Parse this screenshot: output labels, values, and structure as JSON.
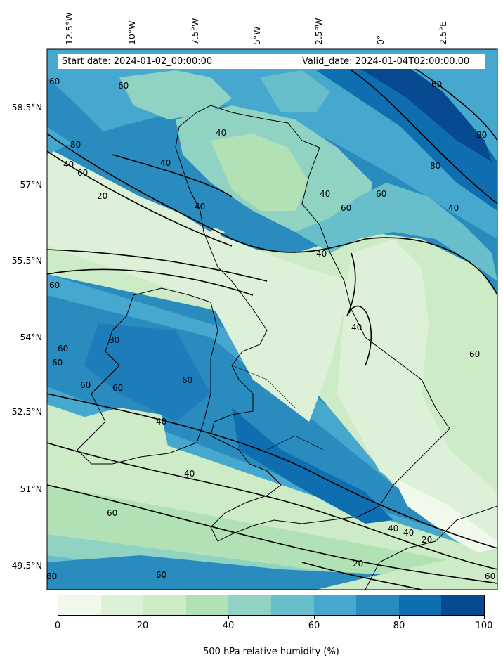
{
  "header": {
    "start_date": "Start date: 2024-01-02_00:00:00",
    "valid_date": "Valid_date: 2024-01-04T02:00:00.00"
  },
  "axes": {
    "lon_labels": [
      "12.5°W",
      "10°W",
      "7.5°W",
      "5°W",
      "2.5°W",
      "0°",
      "2.5°E"
    ],
    "lat_labels": [
      "58.5°N",
      "57°N",
      "55.5°N",
      "54°N",
      "52.5°N",
      "51°N",
      "49.5°N"
    ]
  },
  "contour_labels": [
    "60",
    "80",
    "40",
    "60",
    "20",
    "40",
    "60",
    "40",
    "40",
    "40",
    "60",
    "60",
    "40",
    "60",
    "80",
    "80",
    "40",
    "60",
    "60",
    "80",
    "60",
    "60",
    "60",
    "60",
    "60",
    "40",
    "40",
    "40",
    "60",
    "40",
    "40",
    "20",
    "20",
    "60",
    "80",
    "60"
  ],
  "colorbar": {
    "ticks": [
      "0",
      "20",
      "40",
      "60",
      "80",
      "100"
    ],
    "label": "500 hPa relative humidity (%)",
    "colors": [
      "#f0f9ec",
      "#ddf1d9",
      "#cdebc6",
      "#b2e1b6",
      "#90d3c3",
      "#68bfcb",
      "#46a8cf",
      "#2a8bbe",
      "#0f6eb0",
      "#084a90"
    ]
  }
}
